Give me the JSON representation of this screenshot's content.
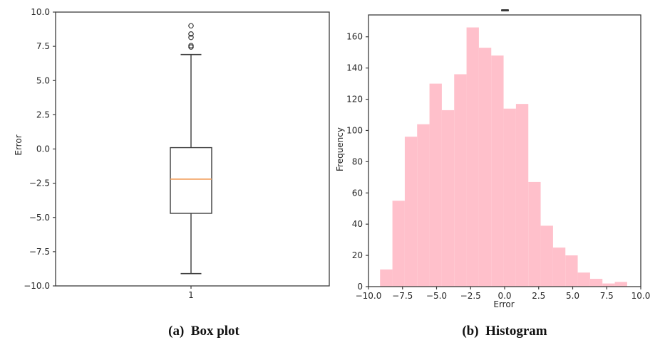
{
  "page": {
    "background": "#ffffff"
  },
  "captions": {
    "a": "(a)  Box plot",
    "b": "(b)  Histogram"
  },
  "colors": {
    "bar_fill": "#ffc0cb",
    "median_line": "#f2a15f",
    "axis_line": "#3c3c3c",
    "tick_text": "#262626",
    "caption_text": "#111111"
  },
  "chart_data": [
    {
      "type": "box",
      "title": "",
      "xlabel": "",
      "ylabel": "Error",
      "ylim": [
        -10.0,
        10.0
      ],
      "y_ticks": [
        10.0,
        7.5,
        5.0,
        2.5,
        0.0,
        -2.5,
        -5.0,
        -7.5,
        -10.0
      ],
      "y_tick_labels": [
        "10.0",
        "7.5",
        "5.0",
        "2.5",
        "0.0",
        "−2.5",
        "−5.0",
        "−7.5",
        "−10.0"
      ],
      "x_tick_labels": [
        "1"
      ],
      "series": [
        {
          "name": "1",
          "whisker_low": -9.1,
          "q1": -4.7,
          "median": -2.2,
          "q3": 0.1,
          "whisker_high": 6.9,
          "outliers": [
            9.0,
            8.4,
            8.15,
            7.55,
            7.45
          ]
        }
      ]
    },
    {
      "type": "bar",
      "subtype": "histogram",
      "title": "",
      "xlabel": "Error",
      "ylabel": "Frequency",
      "xlim": [
        -10.0,
        10.0
      ],
      "ylim": [
        0,
        174
      ],
      "x_ticks": [
        -10.0,
        -7.5,
        -5.0,
        -2.5,
        0.0,
        2.5,
        5.0,
        7.5,
        10.0
      ],
      "x_tick_labels": [
        "−10.0",
        "−7.5",
        "−5.0",
        "−2.5",
        "0.0",
        "2.5",
        "5.0",
        "7.5",
        "10.0"
      ],
      "y_ticks": [
        0,
        20,
        40,
        60,
        80,
        100,
        120,
        140,
        160
      ],
      "y_tick_labels": [
        "0",
        "20",
        "40",
        "60",
        "80",
        "100",
        "120",
        "140",
        "160"
      ],
      "bin_start": -9.15,
      "bin_width": 0.9075,
      "frequencies": [
        11,
        55,
        96,
        104,
        130,
        113,
        136,
        166,
        153,
        148,
        114,
        117,
        67,
        39,
        25,
        20,
        9,
        5,
        2,
        3
      ]
    }
  ]
}
